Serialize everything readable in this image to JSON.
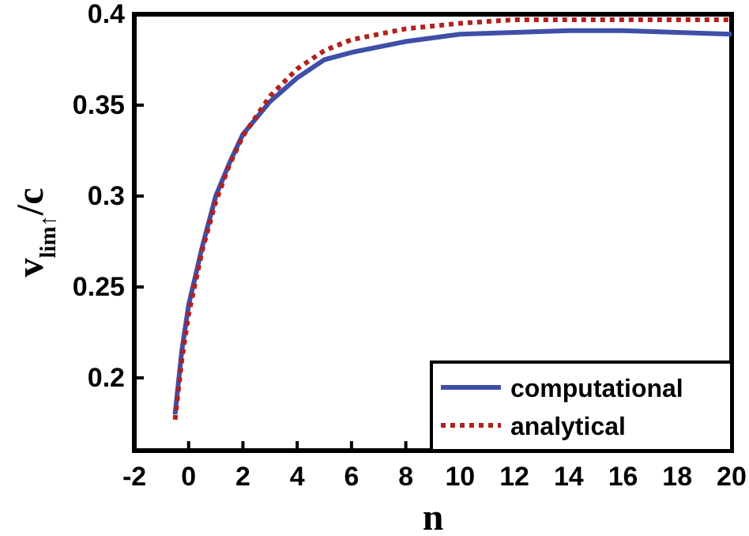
{
  "chart_data": {
    "type": "line",
    "xlabel": "n",
    "ylabel": "v$_{lim↑}$/c",
    "xlim": [
      -2,
      20
    ],
    "ylim": [
      0.16,
      0.4
    ],
    "xticks": [
      -2,
      0,
      2,
      4,
      6,
      8,
      10,
      12,
      14,
      16,
      18,
      20
    ],
    "yticks": [
      0.2,
      0.25,
      0.3,
      0.35,
      0.4
    ],
    "legend": "bottom right",
    "grid": false,
    "series": [
      {
        "name": "computational",
        "color": "#3f4fa8",
        "line_style": "solid",
        "x": [
          -0.5,
          -0.25,
          0,
          0.5,
          1,
          1.5,
          2,
          3,
          4,
          5,
          6,
          8,
          10,
          12,
          14,
          16,
          18,
          20
        ],
        "values": [
          0.18,
          0.215,
          0.24,
          0.272,
          0.3,
          0.318,
          0.334,
          0.352,
          0.365,
          0.375,
          0.379,
          0.385,
          0.389,
          0.39,
          0.391,
          0.391,
          0.39,
          0.389
        ]
      },
      {
        "name": "analytical",
        "color": "#b22020",
        "line_style": "dotted",
        "x": [
          -0.5,
          -0.25,
          0,
          0.5,
          1,
          1.5,
          2,
          3,
          4,
          5,
          6,
          8,
          10,
          12,
          14,
          16,
          18,
          20
        ],
        "values": [
          0.177,
          0.21,
          0.235,
          0.27,
          0.297,
          0.317,
          0.333,
          0.355,
          0.37,
          0.38,
          0.386,
          0.392,
          0.395,
          0.397,
          0.397,
          0.397,
          0.397,
          0.397
        ]
      }
    ]
  }
}
